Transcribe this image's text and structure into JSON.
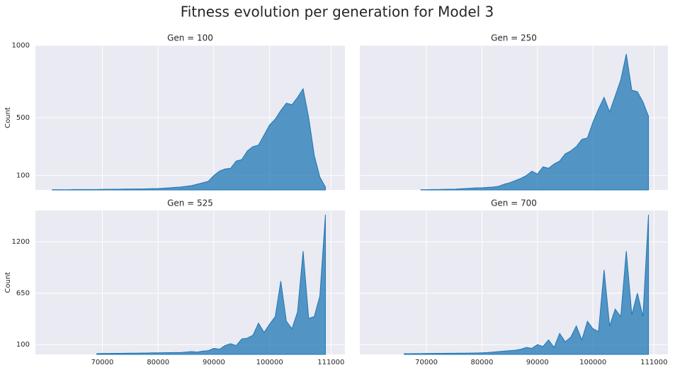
{
  "title": "Fitness evolution per generation for Model 3",
  "chart_data": [
    {
      "type": "area",
      "title": "Gen = 100",
      "ylabel": "Count",
      "color": "#1f77b4",
      "grid": true,
      "x": [
        61000,
        62000,
        63000,
        64000,
        65000,
        66000,
        67000,
        68000,
        69000,
        70000,
        71000,
        72000,
        73000,
        74000,
        75000,
        76000,
        77000,
        78000,
        79000,
        80000,
        81000,
        82000,
        83000,
        84000,
        85000,
        86000,
        87000,
        88000,
        89000,
        90000,
        91000,
        92000,
        93000,
        94000,
        95000,
        96000,
        97000,
        98000,
        99000,
        100000,
        101000,
        102000,
        103000,
        104000,
        105000,
        106000,
        107000,
        108000,
        109000,
        110000
      ],
      "values": [
        2,
        2,
        2,
        2,
        3,
        3,
        3,
        3,
        3,
        4,
        4,
        5,
        5,
        6,
        6,
        7,
        7,
        8,
        9,
        10,
        12,
        15,
        18,
        20,
        25,
        30,
        40,
        50,
        60,
        100,
        130,
        145,
        150,
        200,
        210,
        270,
        300,
        310,
        380,
        450,
        490,
        550,
        600,
        590,
        640,
        700,
        500,
        240,
        90,
        20
      ],
      "xlim": [
        58000,
        113500
      ],
      "xticks": [
        70000,
        80000,
        90000,
        100000,
        111000
      ],
      "ylim": [
        0,
        1000
      ],
      "yticks": [
        100,
        500,
        1000
      ]
    },
    {
      "type": "area",
      "title": "Gen = 250",
      "color": "#1f77b4",
      "grid": true,
      "x": [
        61000,
        62000,
        63000,
        64000,
        65000,
        66000,
        67000,
        68000,
        69000,
        70000,
        71000,
        72000,
        73000,
        74000,
        75000,
        76000,
        77000,
        78000,
        79000,
        80000,
        81000,
        82000,
        83000,
        84000,
        85000,
        86000,
        87000,
        88000,
        89000,
        90000,
        91000,
        92000,
        93000,
        94000,
        95000,
        96000,
        97000,
        98000,
        99000,
        100000,
        101000,
        102000,
        103000,
        104000,
        105000,
        106000,
        107000,
        108000,
        109000,
        110000
      ],
      "values": [
        null,
        null,
        null,
        null,
        null,
        null,
        null,
        null,
        2,
        2,
        3,
        3,
        4,
        5,
        5,
        8,
        10,
        12,
        15,
        15,
        18,
        20,
        25,
        40,
        50,
        65,
        80,
        100,
        130,
        110,
        160,
        150,
        180,
        200,
        250,
        270,
        300,
        350,
        360,
        470,
        560,
        640,
        540,
        650,
        760,
        940,
        690,
        680,
        610,
        510
      ],
      "xlim": [
        58000,
        113500
      ],
      "xticks": [
        70000,
        80000,
        90000,
        100000,
        111000
      ],
      "ylim": [
        0,
        1000
      ],
      "yticks": [
        100,
        500,
        1000
      ]
    },
    {
      "type": "area",
      "title": "Gen = 525",
      "ylabel": "Count",
      "color": "#1f77b4",
      "grid": true,
      "x": [
        61000,
        62000,
        63000,
        64000,
        65000,
        66000,
        67000,
        68000,
        69000,
        70000,
        71000,
        72000,
        73000,
        74000,
        75000,
        76000,
        77000,
        78000,
        79000,
        80000,
        81000,
        82000,
        83000,
        84000,
        85000,
        86000,
        87000,
        88000,
        89000,
        90000,
        91000,
        92000,
        93000,
        94000,
        95000,
        96000,
        97000,
        98000,
        99000,
        100000,
        101000,
        102000,
        103000,
        104000,
        105000,
        106000,
        107000,
        108000,
        109000,
        110000
      ],
      "values": [
        null,
        null,
        null,
        null,
        null,
        null,
        null,
        null,
        3,
        5,
        5,
        6,
        6,
        7,
        8,
        8,
        9,
        10,
        12,
        12,
        13,
        14,
        15,
        15,
        20,
        25,
        20,
        30,
        35,
        60,
        50,
        90,
        110,
        90,
        160,
        170,
        200,
        330,
        230,
        320,
        400,
        780,
        350,
        270,
        450,
        1100,
        380,
        400,
        620,
        1490
      ],
      "xlim": [
        58000,
        113500
      ],
      "xticks": [
        70000,
        80000,
        90000,
        100000,
        111000
      ],
      "ylim": [
        -5,
        1535
      ],
      "yticks": [
        100,
        650,
        1200
      ]
    },
    {
      "type": "area",
      "title": "Gen = 700",
      "color": "#1f77b4",
      "grid": true,
      "x": [
        61000,
        62000,
        63000,
        64000,
        65000,
        66000,
        67000,
        68000,
        69000,
        70000,
        71000,
        72000,
        73000,
        74000,
        75000,
        76000,
        77000,
        78000,
        79000,
        80000,
        81000,
        82000,
        83000,
        84000,
        85000,
        86000,
        87000,
        88000,
        89000,
        90000,
        91000,
        92000,
        93000,
        94000,
        95000,
        96000,
        97000,
        98000,
        99000,
        100000,
        101000,
        102000,
        103000,
        104000,
        105000,
        106000,
        107000,
        108000,
        109000,
        110000
      ],
      "values": [
        null,
        null,
        null,
        null,
        null,
        3,
        3,
        4,
        4,
        5,
        5,
        6,
        6,
        7,
        7,
        8,
        8,
        9,
        10,
        12,
        15,
        20,
        25,
        30,
        35,
        40,
        50,
        70,
        60,
        100,
        80,
        150,
        70,
        220,
        130,
        180,
        300,
        150,
        350,
        270,
        240,
        900,
        300,
        480,
        400,
        1100,
        420,
        650,
        400,
        1490
      ],
      "xlim": [
        58000,
        113500
      ],
      "xticks": [
        70000,
        80000,
        90000,
        100000,
        111000
      ],
      "ylim": [
        -5,
        1535
      ],
      "yticks": [
        100,
        650,
        1200
      ]
    }
  ]
}
